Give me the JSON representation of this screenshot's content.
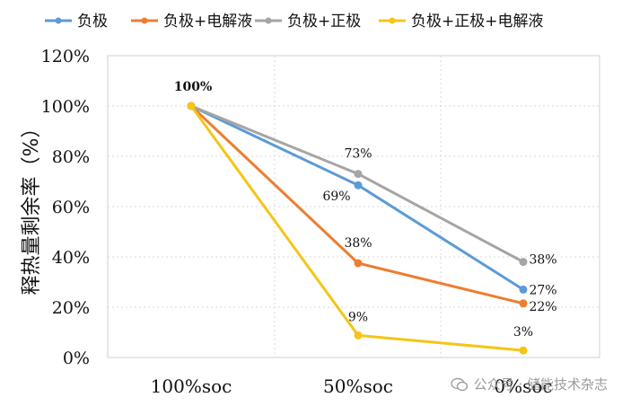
{
  "chart_data": {
    "type": "line",
    "categories": [
      "100%soc",
      "50%soc",
      "0%soc"
    ],
    "ylabel": "释热量剩余率（%）",
    "ylim": [
      0,
      120
    ],
    "yticks": [
      "0%",
      "20%",
      "40%",
      "60%",
      "80%",
      "100%",
      "120%"
    ],
    "grid": true,
    "legend_position": "top",
    "series": [
      {
        "name": "负极",
        "color": "#5B9BD5",
        "values": [
          100,
          68.5,
          27
        ],
        "labels": [
          "",
          "69%",
          "27%"
        ]
      },
      {
        "name": "负极+电解液",
        "color": "#ED7D31",
        "values": [
          100,
          37.5,
          21.5
        ],
        "labels": [
          "",
          "38%",
          "22%"
        ]
      },
      {
        "name": "负极+正极",
        "color": "#A5A5A5",
        "values": [
          100,
          73,
          38
        ],
        "labels": [
          "",
          "73%",
          "38%"
        ]
      },
      {
        "name": "负极+正极+电解液",
        "color": "#F5C518",
        "values": [
          100,
          8.8,
          2.8
        ],
        "labels": [
          "",
          "9%",
          "3%"
        ]
      }
    ],
    "start_label": "100%"
  },
  "watermark": {
    "text": "公众号 · 储能技术杂志",
    "icon": "wechat-icon"
  }
}
